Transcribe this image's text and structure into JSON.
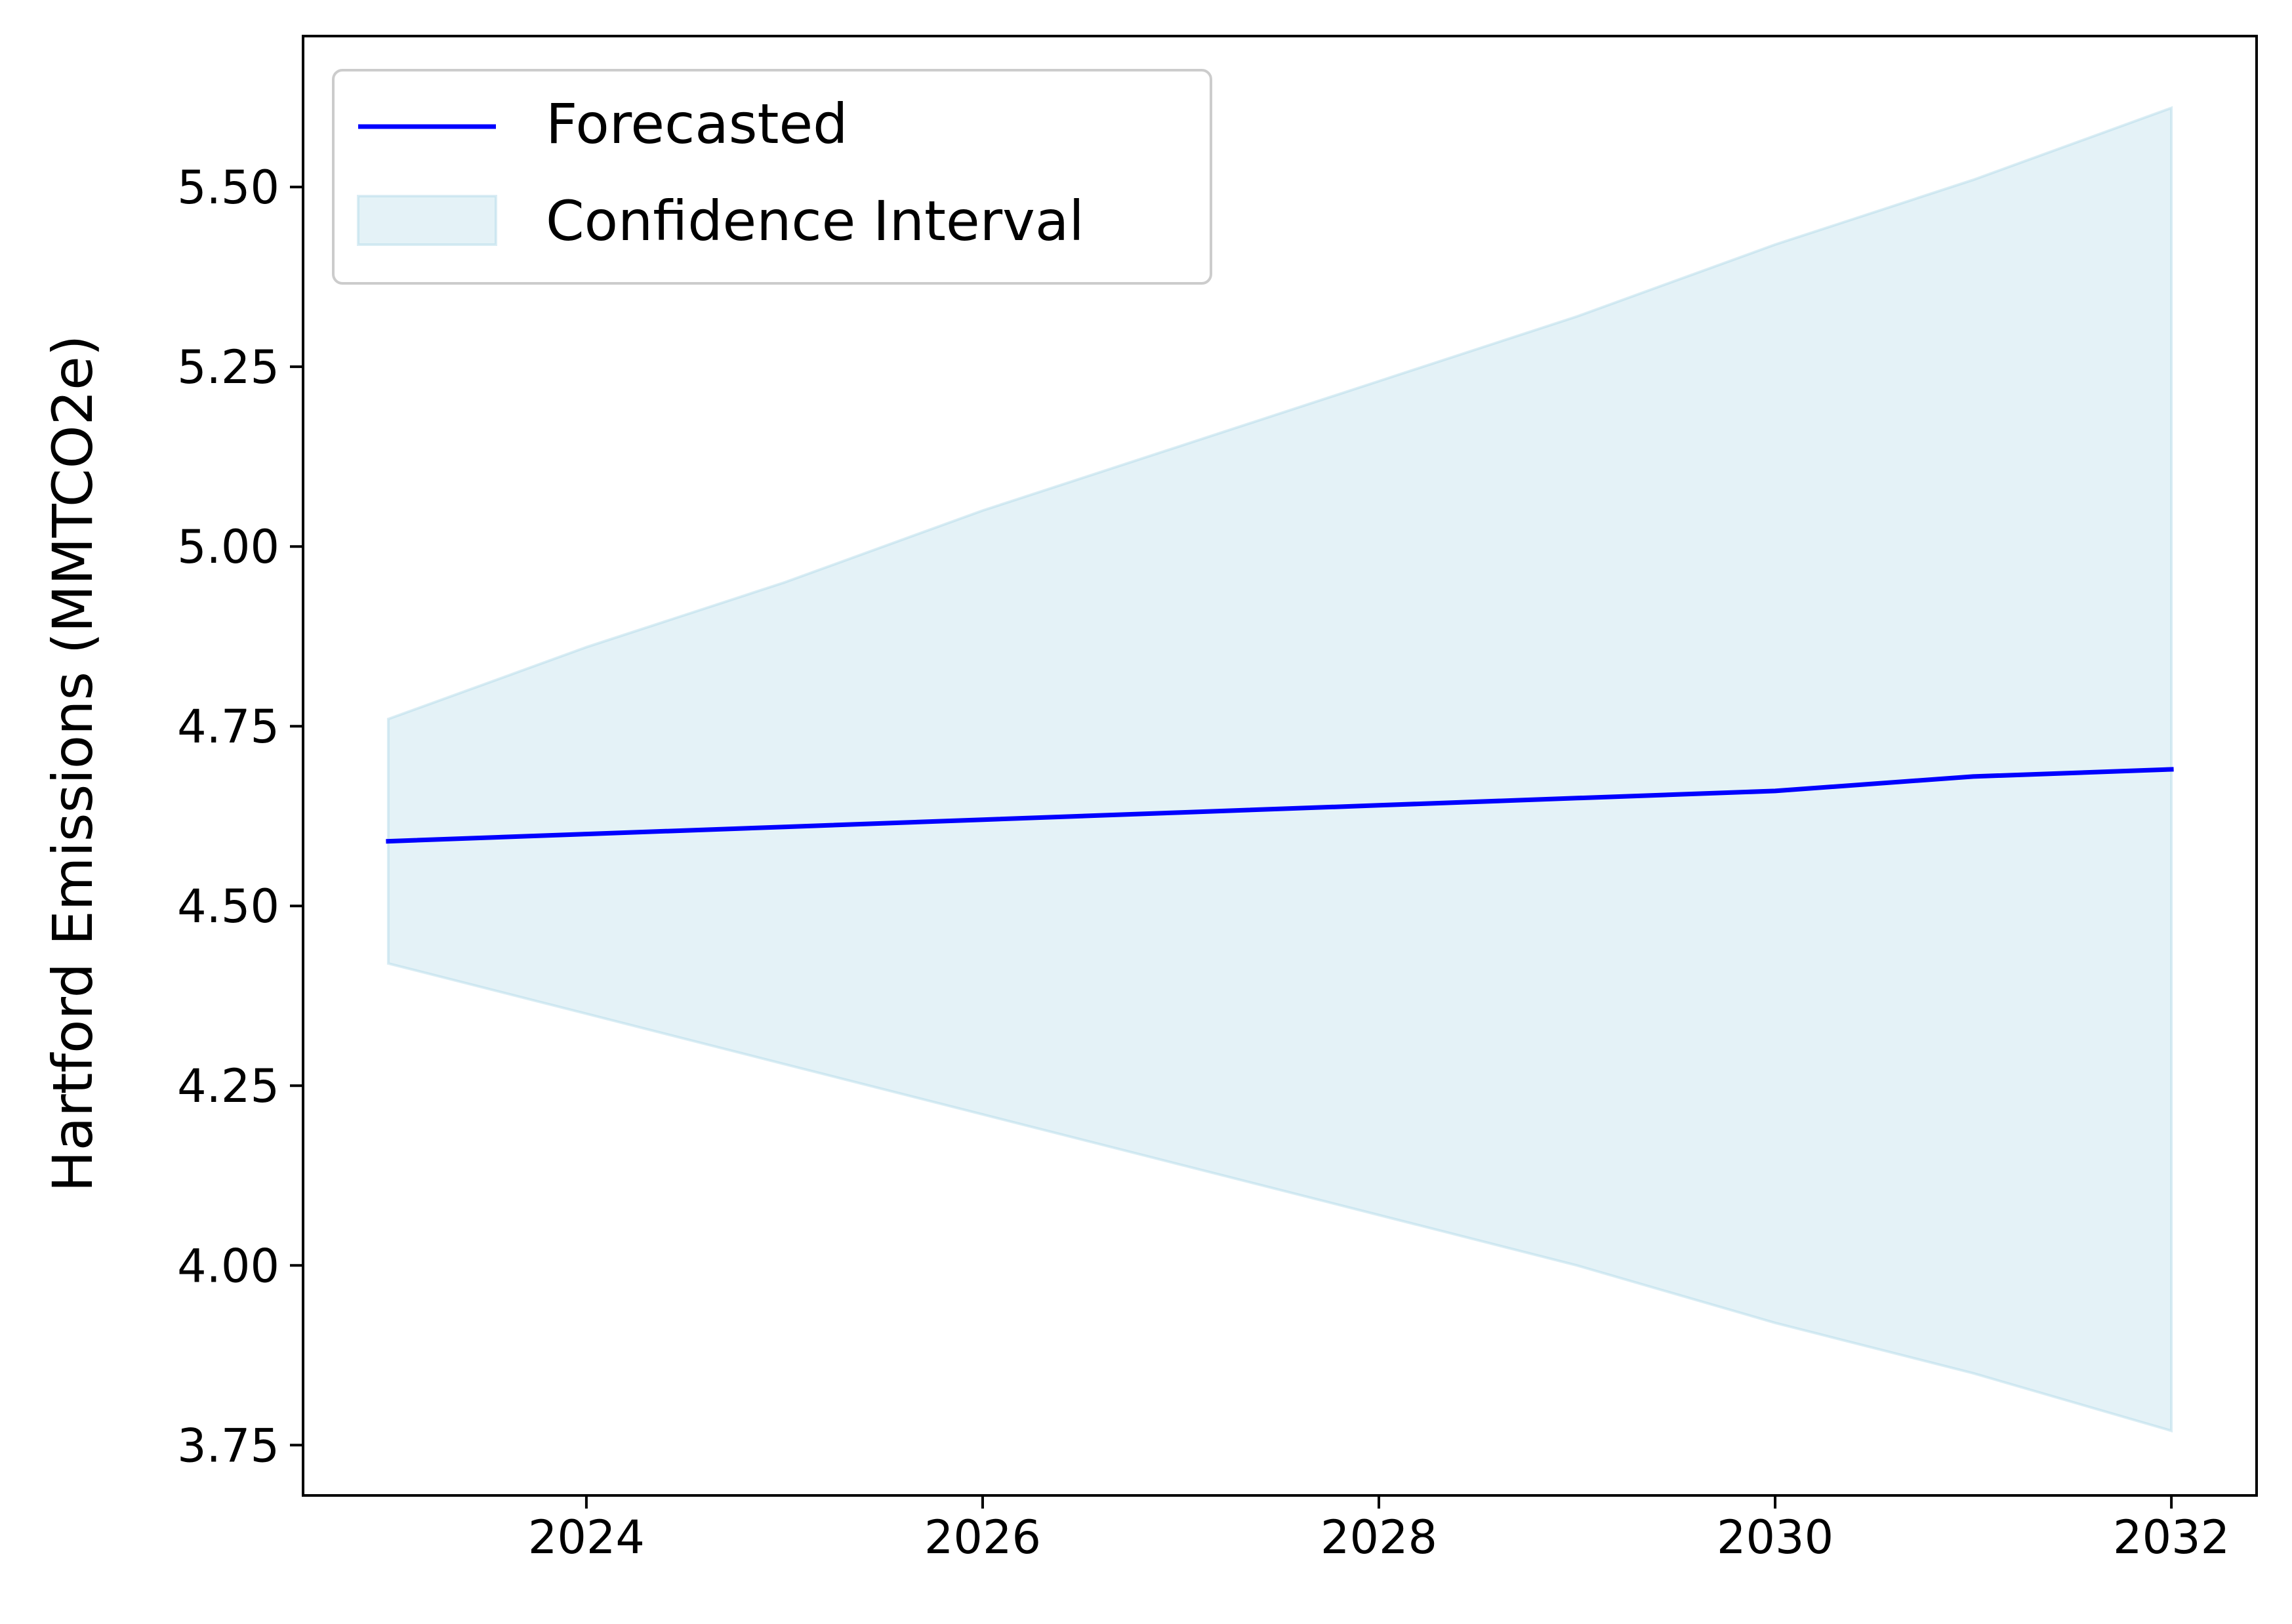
{
  "chart_data": {
    "type": "line",
    "title": "",
    "xlabel": "",
    "ylabel": "Hartford Emissions (MMTCO2e)",
    "xlim": [
      2022.57,
      2032.43
    ],
    "ylim": [
      3.68,
      5.71
    ],
    "x_ticks": [
      {
        "value": 2024,
        "label": "2024"
      },
      {
        "value": 2026,
        "label": "2026"
      },
      {
        "value": 2028,
        "label": "2028"
      },
      {
        "value": 2030,
        "label": "2030"
      },
      {
        "value": 2032,
        "label": "2032"
      }
    ],
    "y_ticks": [
      {
        "value": 3.75,
        "label": "3.75"
      },
      {
        "value": 4.0,
        "label": "4.00"
      },
      {
        "value": 4.25,
        "label": "4.25"
      },
      {
        "value": 4.5,
        "label": "4.50"
      },
      {
        "value": 4.75,
        "label": "4.75"
      },
      {
        "value": 5.0,
        "label": "5.00"
      },
      {
        "value": 5.25,
        "label": "5.25"
      },
      {
        "value": 5.5,
        "label": "5.50"
      }
    ],
    "x": [
      2023,
      2024,
      2025,
      2026,
      2027,
      2028,
      2029,
      2030,
      2031,
      2032
    ],
    "series": [
      {
        "name": "Forecasted",
        "color": "#0000ff",
        "values": [
          4.59,
          4.6,
          4.61,
          4.62,
          4.63,
          4.64,
          4.65,
          4.66,
          4.68,
          4.69
        ]
      }
    ],
    "confidence_interval": {
      "name": "Confidence Interval",
      "color": "#add8e6",
      "lower": [
        4.42,
        4.35,
        4.28,
        4.21,
        4.14,
        4.07,
        4.0,
        3.92,
        3.85,
        3.77
      ],
      "upper": [
        4.76,
        4.86,
        4.95,
        5.05,
        5.14,
        5.23,
        5.32,
        5.42,
        5.51,
        5.61
      ]
    },
    "legend": {
      "placement": "top-left",
      "entries": [
        "Forecasted",
        "Confidence Interval"
      ]
    },
    "grid": false
  }
}
